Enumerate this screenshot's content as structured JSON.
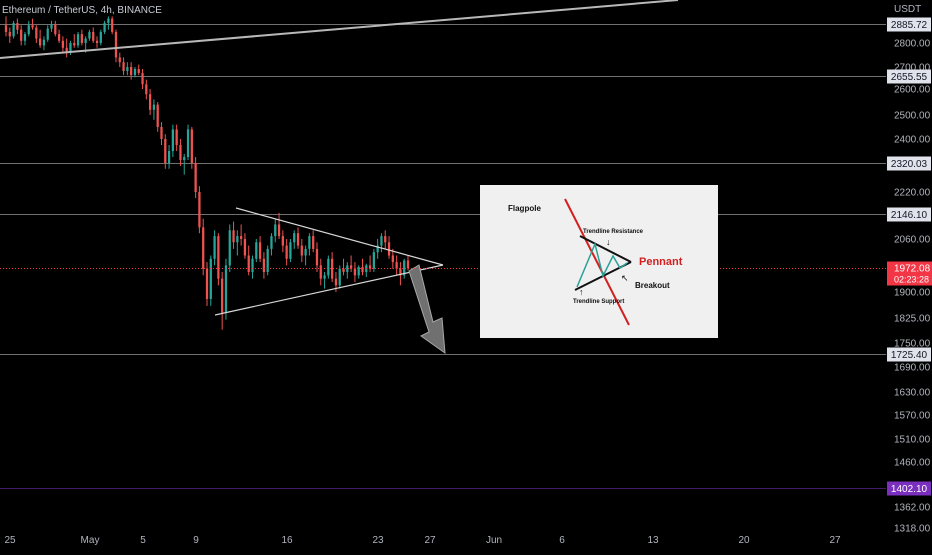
{
  "legend": {
    "symbol_text": "Ethereum / TetherUS, 4h, BINANCE"
  },
  "chart_data": {
    "type": "candlestick",
    "title": "Ethereum / TetherUS, 4h, BINANCE",
    "currency": "USDT",
    "ylim": [
      1300,
      2920
    ],
    "y_ticks": [
      "2800.00",
      "2700.00",
      "2600.00",
      "2500.00",
      "2400.00",
      "2220.00",
      "2060.00",
      "1900.00",
      "1825.00",
      "1750.00",
      "1690.00",
      "1630.00",
      "1570.00",
      "1510.00",
      "1460.00",
      "1362.00",
      "1318.00"
    ],
    "x_ticks": [
      "25",
      "May",
      "5",
      "9",
      "16",
      "23",
      "27",
      "Jun",
      "6",
      "13",
      "20",
      "27"
    ],
    "horizontal_levels": [
      {
        "value": 2885.72,
        "label": "2885.72",
        "color": "#cccccc"
      },
      {
        "value": 2655.55,
        "label": "2655.55",
        "color": "#cccccc"
      },
      {
        "value": 2320.03,
        "label": "2320.03",
        "color": "#cccccc"
      },
      {
        "value": 2146.1,
        "label": "2146.10",
        "color": "#cccccc"
      },
      {
        "value": 1725.4,
        "label": "1725.40",
        "color": "#cccccc"
      },
      {
        "value": 1402.1,
        "label": "1402.10",
        "color": "#7b2fbe"
      }
    ],
    "last_price": {
      "value": 1972.08,
      "label": "1972.08",
      "countdown": "02:23:28",
      "color": "#f23645"
    },
    "bull_color": "#26a69a",
    "bear_color": "#ef5350",
    "candles": [
      {
        "o": 2880,
        "h": 2920,
        "l": 2830,
        "c": 2850
      },
      {
        "o": 2850,
        "h": 2870,
        "l": 2800,
        "c": 2830
      },
      {
        "o": 2830,
        "h": 2900,
        "l": 2820,
        "c": 2890
      },
      {
        "o": 2890,
        "h": 2910,
        "l": 2840,
        "c": 2860
      },
      {
        "o": 2860,
        "h": 2880,
        "l": 2790,
        "c": 2810
      },
      {
        "o": 2810,
        "h": 2850,
        "l": 2790,
        "c": 2840
      },
      {
        "o": 2840,
        "h": 2900,
        "l": 2830,
        "c": 2880
      },
      {
        "o": 2880,
        "h": 2910,
        "l": 2860,
        "c": 2870
      },
      {
        "o": 2870,
        "h": 2880,
        "l": 2800,
        "c": 2820
      },
      {
        "o": 2820,
        "h": 2860,
        "l": 2780,
        "c": 2790
      },
      {
        "o": 2790,
        "h": 2830,
        "l": 2770,
        "c": 2815
      },
      {
        "o": 2815,
        "h": 2880,
        "l": 2805,
        "c": 2865
      },
      {
        "o": 2865,
        "h": 2900,
        "l": 2850,
        "c": 2885
      },
      {
        "o": 2885,
        "h": 2900,
        "l": 2830,
        "c": 2840
      },
      {
        "o": 2840,
        "h": 2860,
        "l": 2800,
        "c": 2810
      },
      {
        "o": 2810,
        "h": 2830,
        "l": 2760,
        "c": 2780
      },
      {
        "o": 2780,
        "h": 2820,
        "l": 2740,
        "c": 2760
      },
      {
        "o": 2760,
        "h": 2810,
        "l": 2750,
        "c": 2800
      },
      {
        "o": 2800,
        "h": 2840,
        "l": 2780,
        "c": 2790
      },
      {
        "o": 2790,
        "h": 2850,
        "l": 2780,
        "c": 2840
      },
      {
        "o": 2840,
        "h": 2860,
        "l": 2790,
        "c": 2800
      },
      {
        "o": 2800,
        "h": 2830,
        "l": 2760,
        "c": 2820
      },
      {
        "o": 2820,
        "h": 2860,
        "l": 2810,
        "c": 2850
      },
      {
        "o": 2850,
        "h": 2870,
        "l": 2800,
        "c": 2810
      },
      {
        "o": 2810,
        "h": 2830,
        "l": 2780,
        "c": 2800
      },
      {
        "o": 2800,
        "h": 2860,
        "l": 2790,
        "c": 2850
      },
      {
        "o": 2850,
        "h": 2900,
        "l": 2840,
        "c": 2890
      },
      {
        "o": 2890,
        "h": 2920,
        "l": 2860,
        "c": 2910
      },
      {
        "o": 2910,
        "h": 2920,
        "l": 2840,
        "c": 2850
      },
      {
        "o": 2850,
        "h": 2860,
        "l": 2720,
        "c": 2740
      },
      {
        "o": 2740,
        "h": 2760,
        "l": 2700,
        "c": 2720
      },
      {
        "o": 2720,
        "h": 2740,
        "l": 2660,
        "c": 2680
      },
      {
        "o": 2680,
        "h": 2720,
        "l": 2660,
        "c": 2700
      },
      {
        "o": 2700,
        "h": 2720,
        "l": 2640,
        "c": 2660
      },
      {
        "o": 2660,
        "h": 2700,
        "l": 2650,
        "c": 2690
      },
      {
        "o": 2690,
        "h": 2710,
        "l": 2660,
        "c": 2670
      },
      {
        "o": 2670,
        "h": 2690,
        "l": 2600,
        "c": 2620
      },
      {
        "o": 2620,
        "h": 2640,
        "l": 2560,
        "c": 2580
      },
      {
        "o": 2580,
        "h": 2600,
        "l": 2500,
        "c": 2520
      },
      {
        "o": 2520,
        "h": 2560,
        "l": 2480,
        "c": 2540
      },
      {
        "o": 2540,
        "h": 2550,
        "l": 2430,
        "c": 2450
      },
      {
        "o": 2450,
        "h": 2470,
        "l": 2380,
        "c": 2400
      },
      {
        "o": 2400,
        "h": 2420,
        "l": 2300,
        "c": 2320
      },
      {
        "o": 2320,
        "h": 2380,
        "l": 2300,
        "c": 2360
      },
      {
        "o": 2360,
        "h": 2460,
        "l": 2340,
        "c": 2440
      },
      {
        "o": 2440,
        "h": 2460,
        "l": 2360,
        "c": 2380
      },
      {
        "o": 2380,
        "h": 2400,
        "l": 2310,
        "c": 2330
      },
      {
        "o": 2330,
        "h": 2350,
        "l": 2280,
        "c": 2340
      },
      {
        "o": 2340,
        "h": 2460,
        "l": 2330,
        "c": 2440
      },
      {
        "o": 2440,
        "h": 2450,
        "l": 2300,
        "c": 2320
      },
      {
        "o": 2320,
        "h": 2340,
        "l": 2200,
        "c": 2220
      },
      {
        "o": 2220,
        "h": 2240,
        "l": 2080,
        "c": 2100
      },
      {
        "o": 2100,
        "h": 2130,
        "l": 1950,
        "c": 1970
      },
      {
        "o": 1970,
        "h": 1990,
        "l": 1860,
        "c": 1880
      },
      {
        "o": 1880,
        "h": 2010,
        "l": 1860,
        "c": 2000
      },
      {
        "o": 2000,
        "h": 2090,
        "l": 1980,
        "c": 2070
      },
      {
        "o": 2070,
        "h": 2080,
        "l": 1920,
        "c": 1940
      },
      {
        "o": 1940,
        "h": 1960,
        "l": 1790,
        "c": 1840
      },
      {
        "o": 1840,
        "h": 2000,
        "l": 1820,
        "c": 1980
      },
      {
        "o": 1980,
        "h": 2110,
        "l": 1960,
        "c": 2090
      },
      {
        "o": 2090,
        "h": 2120,
        "l": 2030,
        "c": 2050
      },
      {
        "o": 2050,
        "h": 2090,
        "l": 2010,
        "c": 2070
      },
      {
        "o": 2070,
        "h": 2110,
        "l": 2040,
        "c": 2060
      },
      {
        "o": 2060,
        "h": 2080,
        "l": 2000,
        "c": 2010
      },
      {
        "o": 2010,
        "h": 2040,
        "l": 1950,
        "c": 1960
      },
      {
        "o": 1960,
        "h": 2010,
        "l": 1940,
        "c": 2000
      },
      {
        "o": 2000,
        "h": 2060,
        "l": 1990,
        "c": 2050
      },
      {
        "o": 2050,
        "h": 2070,
        "l": 1990,
        "c": 2000
      },
      {
        "o": 2000,
        "h": 2020,
        "l": 1940,
        "c": 1960
      },
      {
        "o": 1960,
        "h": 2040,
        "l": 1950,
        "c": 2030
      },
      {
        "o": 2030,
        "h": 2080,
        "l": 2010,
        "c": 2070
      },
      {
        "o": 2070,
        "h": 2130,
        "l": 2050,
        "c": 2110
      },
      {
        "o": 2110,
        "h": 2150,
        "l": 2060,
        "c": 2070
      },
      {
        "o": 2070,
        "h": 2090,
        "l": 2020,
        "c": 2040
      },
      {
        "o": 2040,
        "h": 2060,
        "l": 1980,
        "c": 2000
      },
      {
        "o": 2000,
        "h": 2060,
        "l": 1990,
        "c": 2050
      },
      {
        "o": 2050,
        "h": 2090,
        "l": 2030,
        "c": 2080
      },
      {
        "o": 2080,
        "h": 2100,
        "l": 2030,
        "c": 2040
      },
      {
        "o": 2040,
        "h": 2060,
        "l": 1990,
        "c": 2010
      },
      {
        "o": 2010,
        "h": 2040,
        "l": 1980,
        "c": 2030
      },
      {
        "o": 2030,
        "h": 2080,
        "l": 2010,
        "c": 2070
      },
      {
        "o": 2070,
        "h": 2090,
        "l": 2020,
        "c": 2030
      },
      {
        "o": 2030,
        "h": 2050,
        "l": 1960,
        "c": 1980
      },
      {
        "o": 1980,
        "h": 2000,
        "l": 1920,
        "c": 1940
      },
      {
        "o": 1940,
        "h": 1960,
        "l": 1910,
        "c": 1950
      },
      {
        "o": 1950,
        "h": 2010,
        "l": 1940,
        "c": 2000
      },
      {
        "o": 2000,
        "h": 2020,
        "l": 1930,
        "c": 1940
      },
      {
        "o": 1940,
        "h": 1960,
        "l": 1900,
        "c": 1920
      },
      {
        "o": 1920,
        "h": 1980,
        "l": 1910,
        "c": 1970
      },
      {
        "o": 1970,
        "h": 2000,
        "l": 1950,
        "c": 1960
      },
      {
        "o": 1960,
        "h": 1990,
        "l": 1940,
        "c": 1980
      },
      {
        "o": 1980,
        "h": 2010,
        "l": 1960,
        "c": 1970
      },
      {
        "o": 1970,
        "h": 1990,
        "l": 1930,
        "c": 1950
      },
      {
        "o": 1950,
        "h": 1980,
        "l": 1940,
        "c": 1975
      },
      {
        "o": 1975,
        "h": 2000,
        "l": 1950,
        "c": 1960
      },
      {
        "o": 1960,
        "h": 1985,
        "l": 1945,
        "c": 1980
      },
      {
        "o": 1980,
        "h": 2010,
        "l": 1960,
        "c": 1970
      },
      {
        "o": 1970,
        "h": 2030,
        "l": 1960,
        "c": 2020
      },
      {
        "o": 2020,
        "h": 2060,
        "l": 2000,
        "c": 2040
      },
      {
        "o": 2040,
        "h": 2080,
        "l": 2020,
        "c": 2070
      },
      {
        "o": 2070,
        "h": 2090,
        "l": 2030,
        "c": 2050
      },
      {
        "o": 2050,
        "h": 2070,
        "l": 2000,
        "c": 2010
      },
      {
        "o": 2010,
        "h": 2030,
        "l": 1970,
        "c": 1990
      },
      {
        "o": 1990,
        "h": 2010,
        "l": 1950,
        "c": 1970
      },
      {
        "o": 1970,
        "h": 1990,
        "l": 1920,
        "c": 1950
      },
      {
        "o": 1950,
        "h": 2000,
        "l": 1940,
        "c": 1995
      },
      {
        "o": 1995,
        "h": 2010,
        "l": 1965,
        "c": 1972
      }
    ]
  },
  "inset": {
    "flagpole_label": "Flagpole",
    "trendline_resistance_label": "Trendline Resistance",
    "pennant_label": "Pennant",
    "breakout_label": "Breakout",
    "trendline_support_label": "Trendline Support"
  }
}
